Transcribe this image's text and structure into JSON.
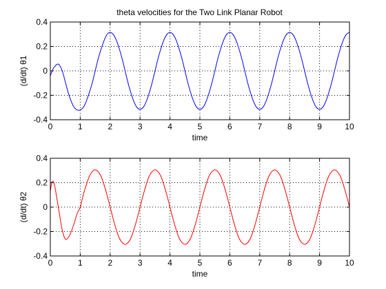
{
  "chart_data": [
    {
      "type": "line",
      "title": "theta velocities for the Two Link Planar Robot",
      "xlabel": "time",
      "ylabel": "(d/dt) θ1",
      "xlim": [
        0,
        10
      ],
      "ylim": [
        -0.4,
        0.4
      ],
      "grid": true,
      "x_ticks": [
        0,
        1,
        2,
        3,
        4,
        5,
        6,
        7,
        8,
        9,
        10
      ],
      "x_tick_labels": [
        "0",
        "1",
        "2",
        "3",
        "4",
        "5",
        "6",
        "7",
        "8",
        "9",
        "10"
      ],
      "y_ticks": [
        -0.4,
        -0.2,
        0,
        0.2,
        0.4
      ],
      "y_tick_labels": [
        "-0.4",
        "-0.2",
        "0",
        "0.2",
        "0.4"
      ],
      "series": [
        {
          "color": "#0000ff",
          "x": [
            0,
            0.1,
            0.2,
            0.25,
            0.3,
            0.4,
            0.5,
            0.6,
            0.7,
            0.8,
            0.9,
            1.0,
            1.1,
            1.2,
            1.3,
            1.4,
            1.5,
            1.6,
            1.7,
            1.8,
            1.9,
            2.0,
            2.1,
            2.2,
            2.3,
            2.4,
            2.5,
            2.6,
            2.7,
            2.8,
            2.9,
            3.0,
            3.1,
            3.2,
            3.3,
            3.4,
            3.5,
            3.6,
            3.7,
            3.8,
            3.9,
            4.0,
            4.1,
            4.2,
            4.3,
            4.4,
            4.5,
            4.6,
            4.7,
            4.8,
            4.9,
            5.0,
            5.1,
            5.2,
            5.3,
            5.4,
            5.5,
            5.6,
            5.7,
            5.8,
            5.9,
            6.0,
            6.1,
            6.2,
            6.3,
            6.4,
            6.5,
            6.6,
            6.7,
            6.8,
            6.9,
            7.0,
            7.1,
            7.2,
            7.3,
            7.4,
            7.5,
            7.6,
            7.7,
            7.8,
            7.9,
            8.0,
            8.1,
            8.2,
            8.3,
            8.4,
            8.5,
            8.6,
            8.7,
            8.8,
            8.9,
            9.0,
            9.1,
            9.2,
            9.3,
            9.4,
            9.5,
            9.6,
            9.7,
            9.8,
            9.9,
            10.0
          ],
          "y": [
            -0.04,
            0.02,
            0.05,
            0.055,
            0.05,
            0.0,
            -0.09,
            -0.18,
            -0.25,
            -0.3,
            -0.32,
            -0.32,
            -0.3,
            -0.25,
            -0.18,
            -0.1,
            0.0,
            0.1,
            0.18,
            0.25,
            0.3,
            0.315,
            0.3,
            0.255,
            0.185,
            0.1,
            0.0,
            -0.1,
            -0.185,
            -0.255,
            -0.3,
            -0.315,
            -0.3,
            -0.255,
            -0.185,
            -0.1,
            0.0,
            0.1,
            0.185,
            0.255,
            0.3,
            0.315,
            0.3,
            0.255,
            0.185,
            0.1,
            0.0,
            -0.1,
            -0.185,
            -0.255,
            -0.3,
            -0.315,
            -0.3,
            -0.255,
            -0.185,
            -0.1,
            0.0,
            0.1,
            0.185,
            0.255,
            0.3,
            0.315,
            0.3,
            0.255,
            0.185,
            0.1,
            0.0,
            -0.1,
            -0.185,
            -0.255,
            -0.3,
            -0.315,
            -0.3,
            -0.255,
            -0.185,
            -0.1,
            0.0,
            0.1,
            0.185,
            0.255,
            0.3,
            0.315,
            0.3,
            0.255,
            0.185,
            0.1,
            0.0,
            -0.1,
            -0.185,
            -0.255,
            -0.3,
            -0.315,
            -0.3,
            -0.255,
            -0.185,
            -0.1,
            0.0,
            0.1,
            0.185,
            0.255,
            0.3,
            0.315
          ]
        }
      ]
    },
    {
      "type": "line",
      "title": "",
      "xlabel": "time",
      "ylabel": "(d/dt) θ2",
      "xlim": [
        0,
        10
      ],
      "ylim": [
        -0.4,
        0.4
      ],
      "grid": true,
      "x_ticks": [
        0,
        1,
        2,
        3,
        4,
        5,
        6,
        7,
        8,
        9,
        10
      ],
      "x_tick_labels": [
        "0",
        "1",
        "2",
        "3",
        "4",
        "5",
        "6",
        "7",
        "8",
        "9",
        "10"
      ],
      "y_ticks": [
        -0.4,
        -0.2,
        0,
        0.2,
        0.4
      ],
      "y_tick_labels": [
        "-0.4",
        "-0.2",
        "0",
        "0.2",
        "0.4"
      ],
      "series": [
        {
          "color": "#ff0000",
          "x": [
            0,
            0.05,
            0.1,
            0.15,
            0.2,
            0.3,
            0.4,
            0.5,
            0.6,
            0.7,
            0.8,
            0.9,
            1.0,
            1.1,
            1.2,
            1.3,
            1.4,
            1.5,
            1.6,
            1.7,
            1.8,
            1.9,
            2.0,
            2.1,
            2.2,
            2.3,
            2.4,
            2.5,
            2.6,
            2.7,
            2.8,
            2.9,
            3.0,
            3.1,
            3.2,
            3.3,
            3.4,
            3.5,
            3.6,
            3.7,
            3.8,
            3.9,
            4.0,
            4.1,
            4.2,
            4.3,
            4.4,
            4.5,
            4.6,
            4.7,
            4.8,
            4.9,
            5.0,
            5.1,
            5.2,
            5.3,
            5.4,
            5.5,
            5.6,
            5.7,
            5.8,
            5.9,
            6.0,
            6.1,
            6.2,
            6.3,
            6.4,
            6.5,
            6.6,
            6.7,
            6.8,
            6.9,
            7.0,
            7.1,
            7.2,
            7.3,
            7.4,
            7.5,
            7.6,
            7.7,
            7.8,
            7.9,
            8.0,
            8.1,
            8.2,
            8.3,
            8.4,
            8.5,
            8.6,
            8.7,
            8.8,
            8.9,
            9.0,
            9.1,
            9.2,
            9.3,
            9.4,
            9.5,
            9.6,
            9.7,
            9.8,
            9.9,
            10.0
          ],
          "y": [
            0.13,
            0.2,
            0.21,
            0.17,
            0.1,
            -0.05,
            -0.19,
            -0.26,
            -0.25,
            -0.2,
            -0.13,
            -0.05,
            0.0,
            0.1,
            0.18,
            0.25,
            0.29,
            0.305,
            0.29,
            0.25,
            0.18,
            0.095,
            0.0,
            -0.095,
            -0.18,
            -0.25,
            -0.29,
            -0.305,
            -0.29,
            -0.25,
            -0.18,
            -0.095,
            0.0,
            0.095,
            0.18,
            0.25,
            0.29,
            0.305,
            0.29,
            0.25,
            0.18,
            0.095,
            0.0,
            -0.095,
            -0.18,
            -0.25,
            -0.29,
            -0.305,
            -0.29,
            -0.25,
            -0.18,
            -0.095,
            0.0,
            0.095,
            0.18,
            0.25,
            0.29,
            0.305,
            0.29,
            0.25,
            0.18,
            0.095,
            0.0,
            -0.095,
            -0.18,
            -0.25,
            -0.29,
            -0.305,
            -0.29,
            -0.25,
            -0.18,
            -0.095,
            0.0,
            0.095,
            0.18,
            0.25,
            0.29,
            0.305,
            0.29,
            0.25,
            0.18,
            0.095,
            0.0,
            -0.095,
            -0.18,
            -0.25,
            -0.29,
            -0.305,
            -0.29,
            -0.25,
            -0.18,
            -0.095,
            0.0,
            0.095,
            0.18,
            0.25,
            0.29,
            0.305,
            0.29,
            0.25,
            0.18,
            0.095,
            0.0
          ]
        }
      ]
    }
  ]
}
